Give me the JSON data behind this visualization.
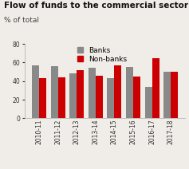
{
  "title": "Flow of funds to the commercial sector",
  "subtitle": "% of total",
  "categories": [
    "2010-11",
    "2011-12",
    "2012-13",
    "2013-14",
    "2014-15",
    "2015-16",
    "2016-17",
    "2017-18"
  ],
  "banks": [
    57,
    56,
    48,
    54,
    43,
    55,
    34,
    50
  ],
  "nonbanks": [
    43,
    44,
    52,
    46,
    57,
    45,
    65,
    50
  ],
  "banks_color": "#898989",
  "nonbanks_color": "#cc0000",
  "ylim": [
    0,
    80
  ],
  "yticks": [
    0,
    20,
    40,
    60,
    80
  ],
  "title_fontsize": 7.5,
  "subtitle_fontsize": 6.5,
  "tick_fontsize": 5.5,
  "legend_fontsize": 6.5,
  "bar_width": 0.38,
  "background_color": "#f0ede8"
}
